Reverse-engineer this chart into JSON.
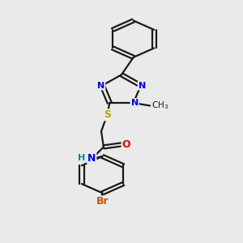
{
  "bg_color": "#eaeaea",
  "bond_color": "#1a1a1a",
  "N_color": "#0000ee",
  "S_color": "#aaaa00",
  "O_color": "#ee0000",
  "Br_color": "#cc5500",
  "H_color": "#008888",
  "figsize": [
    3.0,
    3.0
  ],
  "dpi": 100,
  "xlim": [
    0,
    10
  ],
  "ylim": [
    0,
    13
  ]
}
